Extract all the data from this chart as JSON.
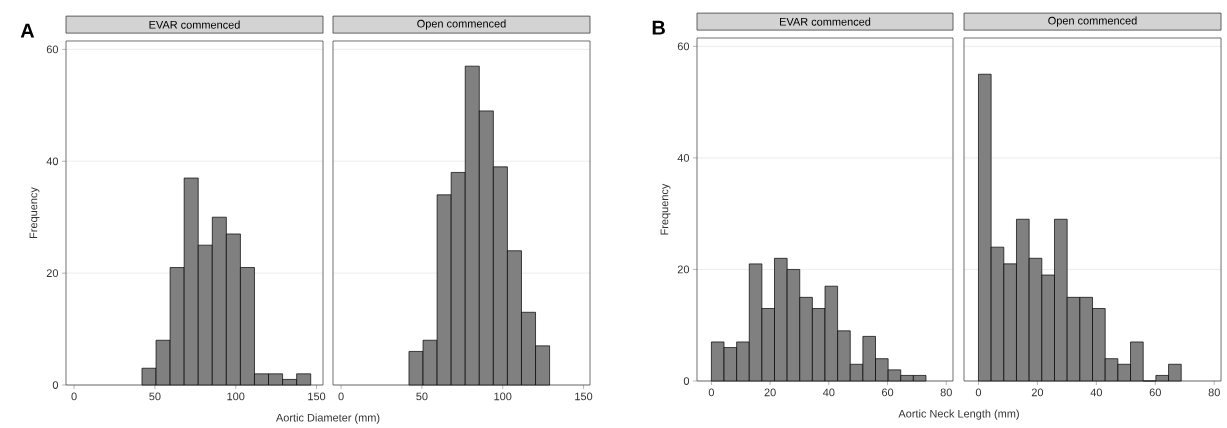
{
  "chart_data": [
    {
      "type": "histogram",
      "title": "EVAR commenced",
      "xlabel": "Aortic Diameter (mm)",
      "ylabel": "Frequency",
      "annotations": [
        "A"
      ],
      "color": "#808080",
      "grid": "y",
      "bins": [
        42,
        50.7,
        59.4,
        68.1,
        76.8,
        85.5,
        94.2,
        102.9,
        111.6,
        120.3,
        129,
        137.7,
        146.4
      ],
      "values": [
        3,
        8,
        21,
        37,
        25,
        30,
        27,
        21,
        2,
        2,
        1,
        2
      ],
      "xlim": [
        -5,
        154
      ],
      "ylim": [
        0,
        61.5
      ],
      "xticks": [
        0,
        50,
        100,
        150
      ],
      "yticks": [
        0,
        20,
        40,
        60
      ]
    },
    {
      "type": "histogram",
      "title": "Open commenced",
      "color": "#808080",
      "grid": "y",
      "tick_labels": "x",
      "bins": [
        42,
        50.7,
        59.4,
        68.1,
        76.8,
        85.5,
        94.2,
        102.9,
        111.6,
        120.3,
        129
      ],
      "values": [
        6,
        8,
        34,
        38,
        57,
        49,
        39,
        24,
        13,
        7
      ],
      "xlim": [
        -5,
        154
      ],
      "ylim": [
        0,
        61.5
      ],
      "xticks": [
        0,
        50,
        100,
        150
      ],
      "yticks": [
        0,
        20,
        40,
        60
      ]
    },
    {
      "type": "histogram",
      "title": "EVAR commenced",
      "xlabel": "Aortic Neck Length (mm)",
      "ylabel": "Frequency",
      "annotations": [
        "B"
      ],
      "color": "#808080",
      "grid": "y",
      "bins": [
        0,
        4.3,
        8.6,
        12.9,
        17.2,
        21.5,
        25.8,
        30.1,
        34.4,
        38.7,
        43,
        47.3,
        51.6,
        55.9,
        60.2,
        64.5,
        68.8,
        73.1
      ],
      "values": [
        7,
        6,
        7,
        21,
        13,
        22,
        20,
        15,
        13,
        17,
        9,
        3,
        8,
        4,
        2,
        1,
        1
      ],
      "xlim": [
        -4.9,
        82.3
      ],
      "ylim": [
        0,
        61.5
      ],
      "xticks": [
        0,
        20,
        40,
        60,
        80
      ],
      "yticks": [
        0,
        20,
        40,
        60
      ]
    },
    {
      "type": "histogram",
      "title": "Open commenced",
      "color": "#808080",
      "grid": "y",
      "tick_labels": "x",
      "bins": [
        0,
        4.3,
        8.6,
        12.9,
        17.2,
        21.5,
        25.8,
        30.1,
        34.4,
        38.7,
        43,
        47.3,
        51.6,
        55.9,
        60.2,
        64.5,
        68.8
      ],
      "values": [
        55,
        24,
        21,
        29,
        22,
        19,
        29,
        15,
        15,
        13,
        4,
        3,
        7,
        0,
        1,
        3
      ],
      "xlim": [
        -4.9,
        82.3
      ],
      "ylim": [
        0,
        61.5
      ],
      "xticks": [
        0,
        20,
        40,
        60,
        80
      ],
      "yticks": [
        0,
        20,
        40,
        60
      ]
    }
  ]
}
